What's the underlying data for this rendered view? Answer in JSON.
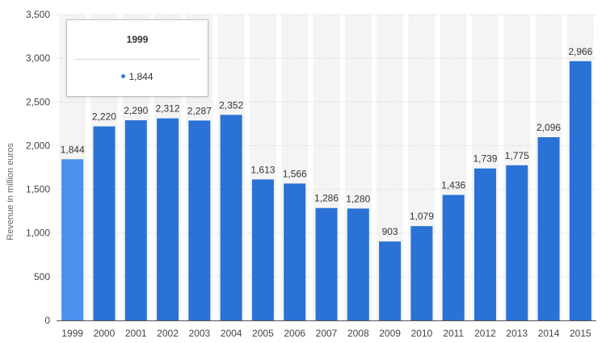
{
  "chart_data": {
    "type": "bar",
    "title": "",
    "xlabel": "",
    "ylabel": "Revenue in million euros",
    "ylim": [
      0,
      3500
    ],
    "yticks": [
      0,
      500,
      1000,
      1500,
      2000,
      2500,
      3000,
      3500
    ],
    "ytick_labels": [
      "0",
      "500",
      "1,000",
      "1,500",
      "2,000",
      "2,500",
      "3,000",
      "3,500"
    ],
    "categories": [
      "1999",
      "2000",
      "2001",
      "2002",
      "2003",
      "2004",
      "2005",
      "2006",
      "2007",
      "2008",
      "2009",
      "2010",
      "2011",
      "2012",
      "2013",
      "2014",
      "2015"
    ],
    "values": [
      1844,
      2220,
      2290,
      2312,
      2287,
      2352,
      1613,
      1566,
      1286,
      1280,
      903,
      1079,
      1436,
      1739,
      1775,
      2096,
      2966
    ],
    "value_labels": [
      "1,844",
      "2,220",
      "2,290",
      "2,312",
      "2,287",
      "2,352",
      "1,613",
      "1,566",
      "1,286",
      "1,280",
      "903",
      "1,079",
      "1,436",
      "1,739",
      "1,775",
      "2,096",
      "2,966"
    ],
    "highlighted_index": 0,
    "grid": true,
    "colors": {
      "bar": "#2a72d5",
      "bar_highlight": "#4a90ec",
      "grid": "#cfcfcf",
      "axis": "#555555",
      "column_band": "#f4f4f4"
    }
  },
  "tooltip": {
    "title": "1999",
    "value": "1,844"
  }
}
